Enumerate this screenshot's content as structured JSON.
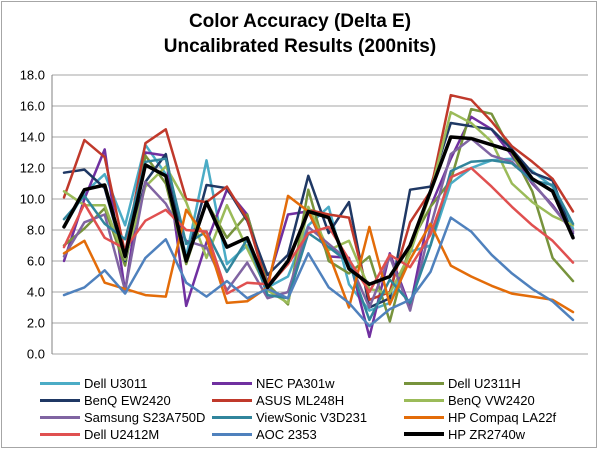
{
  "chart_data": {
    "type": "line",
    "title": "Color Accuracy (Delta E)",
    "subtitle": "Uncalibrated Results (200nits)",
    "ylim": [
      0,
      18
    ],
    "yticks": [
      "0.0",
      "2.0",
      "4.0",
      "6.0",
      "8.0",
      "10.0",
      "12.0",
      "14.0",
      "16.0",
      "18.0"
    ],
    "grid": true,
    "legend_position": "bottom",
    "series": [
      {
        "name": "Dell U3011",
        "color": "#4bacc6",
        "width": 2.5,
        "values": [
          8.2,
          10.4,
          11.6,
          8.3,
          13.5,
          11.6,
          6.3,
          12.5,
          5.8,
          7.0,
          4.3,
          5.0,
          8.3,
          9.5,
          4.5,
          2.8,
          3.3,
          6.6,
          7.0,
          11.0,
          12.0,
          12.5,
          12.6,
          11.8,
          10.8,
          8.1
        ]
      },
      {
        "name": "NEC PA301w",
        "color": "#7030a0",
        "width": 2.5,
        "values": [
          6.0,
          10.0,
          13.2,
          4.0,
          13.0,
          12.8,
          3.1,
          7.2,
          10.6,
          9.0,
          4.6,
          9.0,
          9.2,
          6.3,
          6.2,
          1.1,
          6.5,
          3.0,
          9.5,
          12.6,
          15.3,
          14.5,
          12.8,
          11.0,
          9.6,
          7.8
        ]
      },
      {
        "name": "Dell U2311H",
        "color": "#77933c",
        "width": 2.5,
        "values": [
          7.0,
          8.1,
          9.4,
          5.7,
          12.8,
          11.0,
          5.8,
          9.8,
          7.5,
          9.0,
          4.5,
          3.2,
          10.6,
          6.0,
          5.2,
          6.3,
          2.1,
          7.1,
          9.5,
          11.2,
          15.8,
          15.5,
          13.0,
          10.5,
          6.2,
          4.7
        ]
      },
      {
        "name": "BenQ EW2420",
        "color": "#1f3864",
        "width": 2.5,
        "values": [
          11.7,
          11.9,
          10.7,
          6.0,
          11.1,
          12.9,
          6.0,
          10.9,
          10.7,
          8.6,
          5.1,
          6.4,
          11.5,
          7.8,
          9.8,
          3.0,
          3.6,
          10.6,
          10.8,
          14.9,
          14.7,
          14.5,
          13.2,
          11.7,
          11.2,
          7.6
        ]
      },
      {
        "name": "ASUS ML248H",
        "color": "#c0392b",
        "width": 2.5,
        "values": [
          10.1,
          13.8,
          12.7,
          6.5,
          13.6,
          14.5,
          10.0,
          9.8,
          10.8,
          8.7,
          4.3,
          5.8,
          9.3,
          9.0,
          8.8,
          3.5,
          4.0,
          8.5,
          10.5,
          16.7,
          16.4,
          15.0,
          13.4,
          12.4,
          11.3,
          9.2
        ]
      },
      {
        "name": "BenQ VW2420",
        "color": "#9bbb59",
        "width": 2.5,
        "values": [
          10.5,
          9.6,
          9.6,
          6.1,
          10.8,
          12.1,
          9.8,
          6.2,
          9.6,
          6.8,
          4.1,
          3.3,
          9.5,
          6.7,
          7.3,
          4.2,
          3.9,
          6.5,
          10.4,
          15.6,
          14.9,
          13.7,
          11.0,
          9.8,
          8.9,
          8.3
        ]
      },
      {
        "name": "Samsung S23A750D",
        "color": "#8064a2",
        "width": 2.5,
        "values": [
          6.3,
          8.5,
          9.0,
          4.1,
          11.1,
          9.7,
          7.3,
          6.9,
          4.1,
          5.9,
          3.6,
          4.0,
          8.2,
          7.1,
          6.0,
          3.0,
          6.3,
          2.8,
          8.2,
          12.9,
          13.9,
          12.8,
          12.4,
          11.1,
          9.5,
          7.9
        ]
      },
      {
        "name": "ViewSonic V3D231",
        "color": "#31859c",
        "width": 2.5,
        "values": [
          8.7,
          10.2,
          8.4,
          7.4,
          12.4,
          12.6,
          7.1,
          7.9,
          5.3,
          7.4,
          3.8,
          3.6,
          7.8,
          6.9,
          5.9,
          2.2,
          4.8,
          3.3,
          7.0,
          11.8,
          12.4,
          12.5,
          12.3,
          11.2,
          10.9,
          8.4
        ]
      },
      {
        "name": "HP Compaq LA22f",
        "color": "#e36c09",
        "width": 2.5,
        "values": [
          6.5,
          7.3,
          4.6,
          4.2,
          3.8,
          3.7,
          9.3,
          7.5,
          3.3,
          3.4,
          4.3,
          10.2,
          9.2,
          6.5,
          3.0,
          8.2,
          3.2,
          6.1,
          8.4,
          5.7,
          5.0,
          4.4,
          3.9,
          3.7,
          3.5,
          2.7
        ]
      },
      {
        "name": "Dell U2412M",
        "color": "#e05050",
        "width": 2.5,
        "values": [
          6.9,
          9.7,
          7.5,
          6.8,
          8.6,
          9.3,
          8.0,
          7.9,
          3.9,
          4.6,
          4.5,
          5.8,
          7.8,
          8.2,
          6.1,
          4.0,
          6.4,
          5.6,
          7.7,
          11.4,
          12.0,
          10.8,
          9.5,
          8.3,
          7.3,
          5.9
        ]
      },
      {
        "name": "AOC 2353",
        "color": "#4f81bd",
        "width": 2.5,
        "values": [
          3.8,
          4.3,
          5.4,
          3.9,
          6.2,
          7.4,
          4.6,
          3.7,
          4.7,
          3.6,
          4.2,
          3.6,
          6.5,
          4.3,
          3.3,
          1.8,
          2.9,
          3.5,
          5.3,
          8.8,
          7.9,
          6.4,
          5.2,
          4.2,
          3.4,
          2.2
        ]
      },
      {
        "name": "HP ZR2740w",
        "color": "#000000",
        "width": 3.5,
        "values": [
          8.2,
          10.6,
          10.9,
          6.3,
          12.2,
          11.5,
          6.0,
          9.8,
          6.9,
          7.5,
          4.3,
          6.0,
          9.2,
          8.8,
          5.5,
          4.5,
          5.0,
          7.0,
          10.5,
          14.0,
          13.9,
          13.5,
          13.1,
          11.3,
          10.5,
          7.5
        ]
      }
    ]
  }
}
